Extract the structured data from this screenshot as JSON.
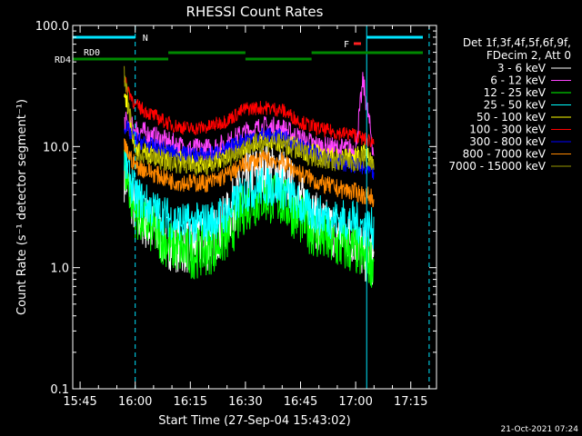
{
  "chart_data": {
    "type": "line",
    "title": "RHESSI Count Rates",
    "xlabel": "Start Time (27-Sep-04 15:43:02)",
    "ylabel": "Count Rate (s⁻¹ detector segment⁻¹)",
    "x_range": [
      "15:43",
      "17:22"
    ],
    "ylim": [
      0.1,
      100
    ],
    "y_scale": "log",
    "x_ticks": [
      "15:45",
      "16:00",
      "16:15",
      "16:30",
      "16:45",
      "17:00",
      "17:15"
    ],
    "y_ticks": [
      "0.1",
      "1.0",
      "10.0",
      "100.0"
    ],
    "legend_header": [
      "Det 1f,3f,4f,5f,6f,9f,",
      "FDecim 2, Att 0"
    ],
    "legend_position": "right",
    "timestamp": "21-Oct-2021 07:24",
    "series": [
      {
        "name": "3 - 6 keV",
        "color": "#ffffff",
        "x": [
          "15:57",
          "16:00",
          "16:05",
          "16:10",
          "16:15",
          "16:20",
          "16:25",
          "16:30",
          "16:35",
          "16:40",
          "16:45",
          "16:50",
          "16:55",
          "17:00",
          "17:02",
          "17:05"
        ],
        "values": [
          6.0,
          3.0,
          2.0,
          1.6,
          1.5,
          1.6,
          2.5,
          5.5,
          6.5,
          6.0,
          3.5,
          2.3,
          2.0,
          1.8,
          1.3,
          1.2
        ]
      },
      {
        "name": "6 - 12 keV",
        "color": "#ff44ff",
        "x": [
          "15:57",
          "16:00",
          "16:05",
          "16:10",
          "16:15",
          "16:20",
          "16:25",
          "16:30",
          "16:35",
          "16:40",
          "16:45",
          "16:50",
          "16:55",
          "17:00",
          "17:02",
          "17:05"
        ],
        "values": [
          16.0,
          14.0,
          12.0,
          10.5,
          9.5,
          9.5,
          10.5,
          13.0,
          14.5,
          14.0,
          11.5,
          10.0,
          9.5,
          9.5,
          35.0,
          8.5
        ]
      },
      {
        "name": "12 - 25 keV",
        "color": "#00ff00",
        "x": [
          "15:57",
          "16:00",
          "16:05",
          "16:10",
          "16:15",
          "16:20",
          "16:25",
          "16:30",
          "16:35",
          "16:40",
          "16:45",
          "16:50",
          "16:55",
          "17:00",
          "17:02",
          "17:05"
        ],
        "values": [
          7.0,
          2.8,
          2.0,
          1.5,
          1.3,
          1.4,
          1.8,
          3.2,
          3.8,
          3.5,
          2.5,
          1.8,
          1.5,
          1.4,
          1.2,
          1.1
        ]
      },
      {
        "name": "25 - 50 keV",
        "color": "#00ffff",
        "x": [
          "15:57",
          "16:00",
          "16:05",
          "16:10",
          "16:15",
          "16:20",
          "16:25",
          "16:30",
          "16:35",
          "16:40",
          "16:45",
          "16:50",
          "16:55",
          "17:00",
          "17:02",
          "17:05"
        ],
        "values": [
          8.0,
          4.0,
          3.0,
          2.5,
          2.3,
          2.4,
          2.8,
          4.2,
          4.8,
          4.5,
          3.2,
          2.7,
          2.5,
          2.4,
          2.2,
          2.1
        ]
      },
      {
        "name": "50 - 100 keV",
        "color": "#ffff00",
        "x": [
          "15:57",
          "16:00",
          "16:05",
          "16:10",
          "16:15",
          "16:20",
          "16:25",
          "16:30",
          "16:35",
          "16:40",
          "16:45",
          "16:50",
          "16:55",
          "17:00",
          "17:02",
          "17:05"
        ],
        "values": [
          30.0,
          9.5,
          8.5,
          8.0,
          7.5,
          7.5,
          8.5,
          10.5,
          11.5,
          11.0,
          9.5,
          8.5,
          8.0,
          8.0,
          9.0,
          7.5
        ]
      },
      {
        "name": "100 - 300 keV",
        "color": "#ff0000",
        "x": [
          "15:57",
          "16:00",
          "16:05",
          "16:10",
          "16:15",
          "16:20",
          "16:25",
          "16:30",
          "16:35",
          "16:40",
          "16:45",
          "16:50",
          "16:55",
          "17:00",
          "17:02",
          "17:05"
        ],
        "values": [
          35.0,
          22.0,
          18.0,
          15.0,
          14.0,
          14.5,
          16.5,
          20.5,
          21.0,
          20.0,
          16.0,
          14.0,
          13.0,
          12.5,
          11.5,
          11.0
        ]
      },
      {
        "name": "300 - 800 keV",
        "color": "#0000ff",
        "x": [
          "15:57",
          "16:00",
          "16:05",
          "16:10",
          "16:15",
          "16:20",
          "16:25",
          "16:30",
          "16:35",
          "16:40",
          "16:45",
          "16:50",
          "16:55",
          "17:00",
          "17:02",
          "17:05"
        ],
        "values": [
          15.0,
          11.5,
          10.0,
          9.0,
          8.5,
          8.5,
          9.5,
          11.5,
          12.5,
          12.0,
          10.0,
          8.5,
          7.5,
          7.0,
          6.5,
          6.0
        ]
      },
      {
        "name": "800 - 7000 keV",
        "color": "#ff8800",
        "x": [
          "15:57",
          "16:00",
          "16:05",
          "16:10",
          "16:15",
          "16:20",
          "16:25",
          "16:30",
          "16:35",
          "16:40",
          "16:45",
          "16:50",
          "16:55",
          "17:00",
          "17:02",
          "17:05"
        ],
        "values": [
          10.0,
          7.0,
          6.0,
          5.2,
          5.0,
          5.0,
          5.8,
          7.2,
          8.0,
          7.5,
          6.0,
          5.0,
          4.5,
          4.2,
          4.0,
          3.8
        ]
      },
      {
        "name": "7000 - 15000 keV",
        "color": "#999900",
        "x": [
          "15:57",
          "16:00",
          "16:05",
          "16:10",
          "16:15",
          "16:20",
          "16:25",
          "16:30",
          "16:35",
          "16:40",
          "16:45",
          "16:50",
          "16:55",
          "17:00",
          "17:02",
          "17:05"
        ],
        "values": [
          38.0,
          9.0,
          8.0,
          7.5,
          7.0,
          7.0,
          8.0,
          10.0,
          11.0,
          10.5,
          9.0,
          8.0,
          7.5,
          7.5,
          8.0,
          7.0
        ]
      }
    ],
    "annotations": {
      "cyan_bar_label": "N",
      "red_flag_label": "F",
      "green_bar_labels": [
        "RD0",
        "RD4"
      ],
      "vertical_lines": [
        {
          "x": "15:43",
          "style": "solid"
        },
        {
          "x": "16:00",
          "style": "dashed"
        },
        {
          "x": "17:03",
          "style": "solid"
        },
        {
          "x": "17:20",
          "style": "dashed"
        }
      ]
    }
  }
}
